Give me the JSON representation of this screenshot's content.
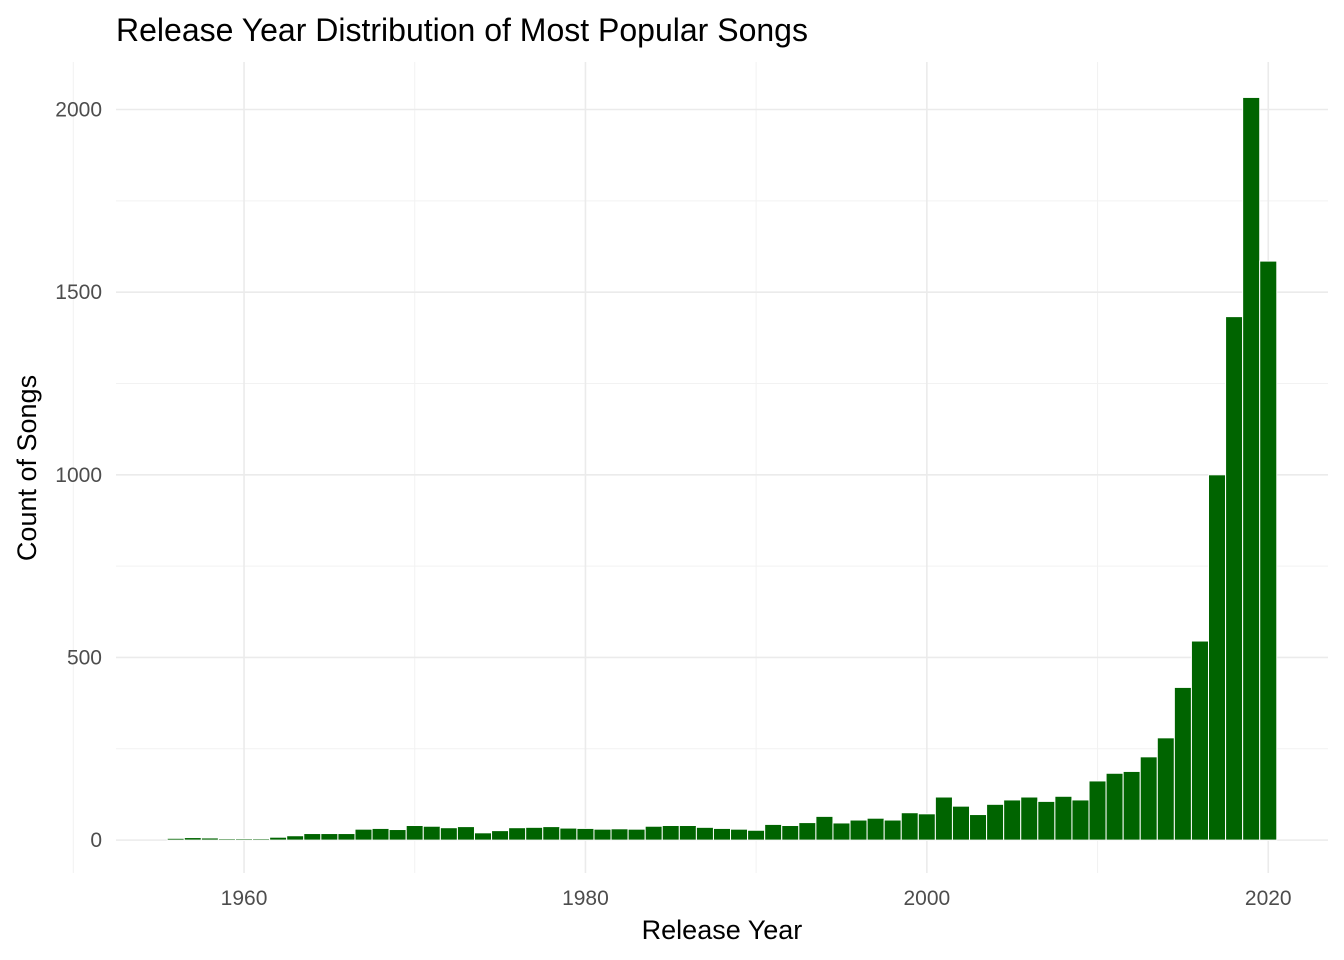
{
  "colors": {
    "bar_fill": "#006400",
    "background": "#ffffff"
  },
  "chart_data": {
    "type": "bar",
    "title": "Release Year Distribution of Most Popular Songs",
    "xlabel": "Release Year",
    "ylabel": "Count of Songs",
    "xlim": [
      1952.5,
      2023.5
    ],
    "ylim": [
      -90,
      2130
    ],
    "x_ticks": [
      1960,
      1980,
      2000,
      2020
    ],
    "y_ticks": [
      0,
      500,
      1000,
      1500,
      2000
    ],
    "grid": true,
    "legend": "none",
    "bin_width": 1,
    "x": [
      1956,
      1957,
      1958,
      1959,
      1960,
      1961,
      1962,
      1963,
      1964,
      1965,
      1966,
      1967,
      1968,
      1969,
      1970,
      1971,
      1972,
      1973,
      1974,
      1975,
      1976,
      1977,
      1978,
      1979,
      1980,
      1981,
      1982,
      1983,
      1984,
      1985,
      1986,
      1987,
      1988,
      1989,
      1990,
      1991,
      1992,
      1993,
      1994,
      1995,
      1996,
      1997,
      1998,
      1999,
      2000,
      2001,
      2002,
      2003,
      2004,
      2005,
      2006,
      2007,
      2008,
      2009,
      2010,
      2011,
      2012,
      2013,
      2014,
      2015,
      2016,
      2017,
      2018,
      2019,
      2020
    ],
    "values": [
      5,
      7,
      6,
      4,
      4,
      4,
      8,
      12,
      18,
      18,
      18,
      30,
      32,
      29,
      40,
      38,
      34,
      37,
      20,
      26,
      34,
      35,
      37,
      33,
      32,
      30,
      31,
      30,
      38,
      40,
      40,
      35,
      32,
      30,
      27,
      43,
      40,
      48,
      65,
      47,
      55,
      60,
      55,
      75,
      72,
      118,
      93,
      70,
      98,
      110,
      118,
      106,
      120,
      110,
      162,
      183,
      188,
      228,
      280,
      418,
      545,
      1000,
      1433,
      2033,
      1585
    ]
  }
}
